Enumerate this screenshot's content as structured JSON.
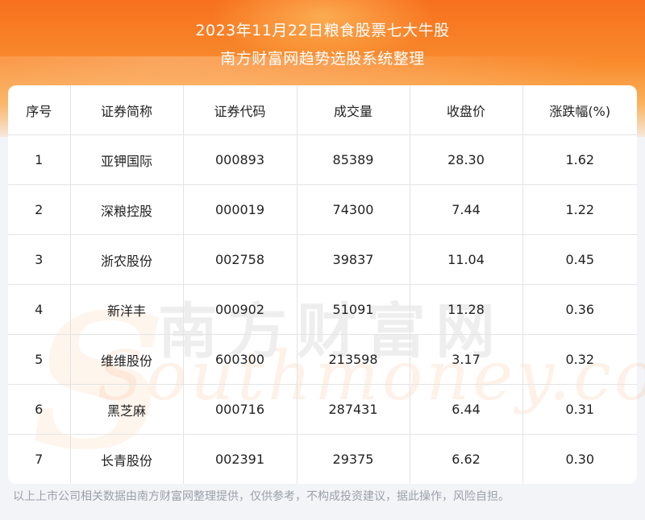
{
  "header": {
    "title_line1": "2023年11月22日粮食股票七大牛股",
    "title_line2": "南方财富网趋势选股系统整理"
  },
  "chart_data": {
    "type": "table",
    "columns": [
      "序号",
      "证券简称",
      "证券代码",
      "成交量",
      "收盘价",
      "涨跌幅(%)"
    ],
    "rows": [
      [
        "1",
        "亚钾国际",
        "000893",
        "85389",
        "28.30",
        "1.62"
      ],
      [
        "2",
        "深粮控股",
        "000019",
        "74300",
        "7.44",
        "1.22"
      ],
      [
        "3",
        "浙农股份",
        "002758",
        "39837",
        "11.04",
        "0.45"
      ],
      [
        "4",
        "新洋丰",
        "000902",
        "51091",
        "11.28",
        "0.36"
      ],
      [
        "5",
        "维维股份",
        "600300",
        "213598",
        "3.17",
        "0.32"
      ],
      [
        "6",
        "黑芝麻",
        "000716",
        "287431",
        "6.44",
        "0.31"
      ],
      [
        "7",
        "长青股份",
        "002391",
        "29375",
        "6.62",
        "0.30"
      ]
    ]
  },
  "watermark": {
    "cn": "南方财富网",
    "en": "Southmoney.com"
  },
  "footer": {
    "disclaimer": "以上上市公司相关数据由南方财富网整理提供，仅供参考，不构成投资建议，据此操作，风险自担。"
  }
}
